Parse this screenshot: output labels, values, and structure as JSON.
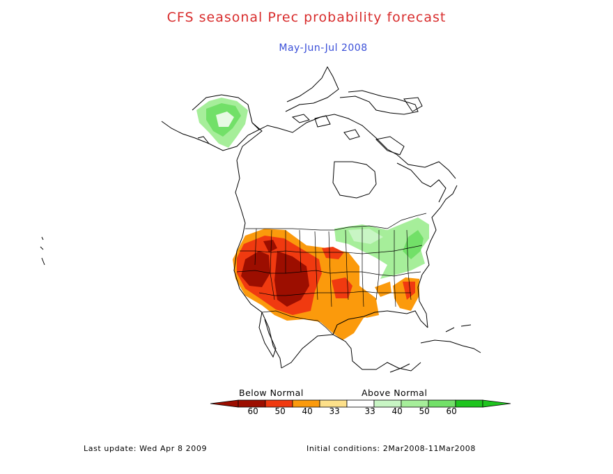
{
  "title": "CFS seasonal Prec probability forecast",
  "subtitle": "May-Jun-Jul 2008",
  "colors": {
    "title": "#d82c2c",
    "subtitle": "#3a4fd8",
    "below_60": "#9c0e00",
    "below_50": "#f03a10",
    "below_40": "#fb9a0c",
    "below_33": "#fde08a",
    "above_33": "#c8f5c4",
    "above_40": "#a6ee9a",
    "above_50": "#72e068",
    "above_60": "#1ec41e"
  },
  "legend": {
    "below_label": "Below Normal",
    "above_label": "Above Normal",
    "ticks": [
      "60",
      "50",
      "40",
      "33",
      "33",
      "40",
      "50",
      "60"
    ]
  },
  "footer": {
    "last_update": "Last update: Wed Apr 8 2009",
    "initial_conditions": "Initial conditions: 2Mar2008-11Mar2008"
  }
}
